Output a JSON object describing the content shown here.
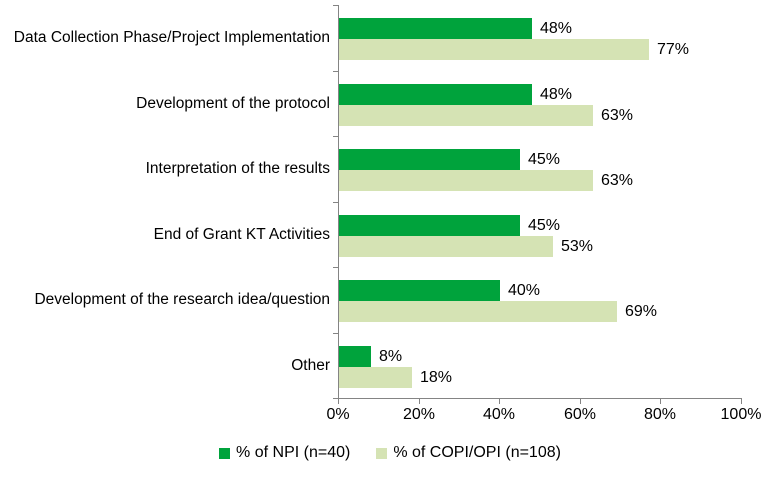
{
  "chart_data": {
    "type": "bar",
    "orientation": "horizontal",
    "title": "",
    "xlabel": "",
    "ylabel": "",
    "xlim": [
      0,
      100
    ],
    "grid": false,
    "legend_position": "bottom",
    "data_labels": true,
    "value_suffix": "%",
    "categories": [
      "Data Collection Phase/Project Implementation",
      "Development of the protocol",
      "Interpretation of the results",
      "End of Grant KT Activities",
      "Development of the research idea/question",
      "Other"
    ],
    "series": [
      {
        "name": "% of NPI (n=40)",
        "color": "#00A33C",
        "values": [
          48,
          48,
          45,
          45,
          40,
          8
        ]
      },
      {
        "name": "% of COPI/OPI (n=108)",
        "color": "#D5E3B4",
        "values": [
          77,
          63,
          63,
          53,
          69,
          18
        ]
      }
    ],
    "x_ticks": [
      {
        "value": 0,
        "label": "0%"
      },
      {
        "value": 20,
        "label": "20%"
      },
      {
        "value": 40,
        "label": "40%"
      },
      {
        "value": 60,
        "label": "60%"
      },
      {
        "value": 80,
        "label": "80%"
      },
      {
        "value": 100,
        "label": "100%"
      }
    ],
    "colors": {
      "axis": "#848484",
      "text": "#000000",
      "background": "#FFFFFF"
    }
  }
}
